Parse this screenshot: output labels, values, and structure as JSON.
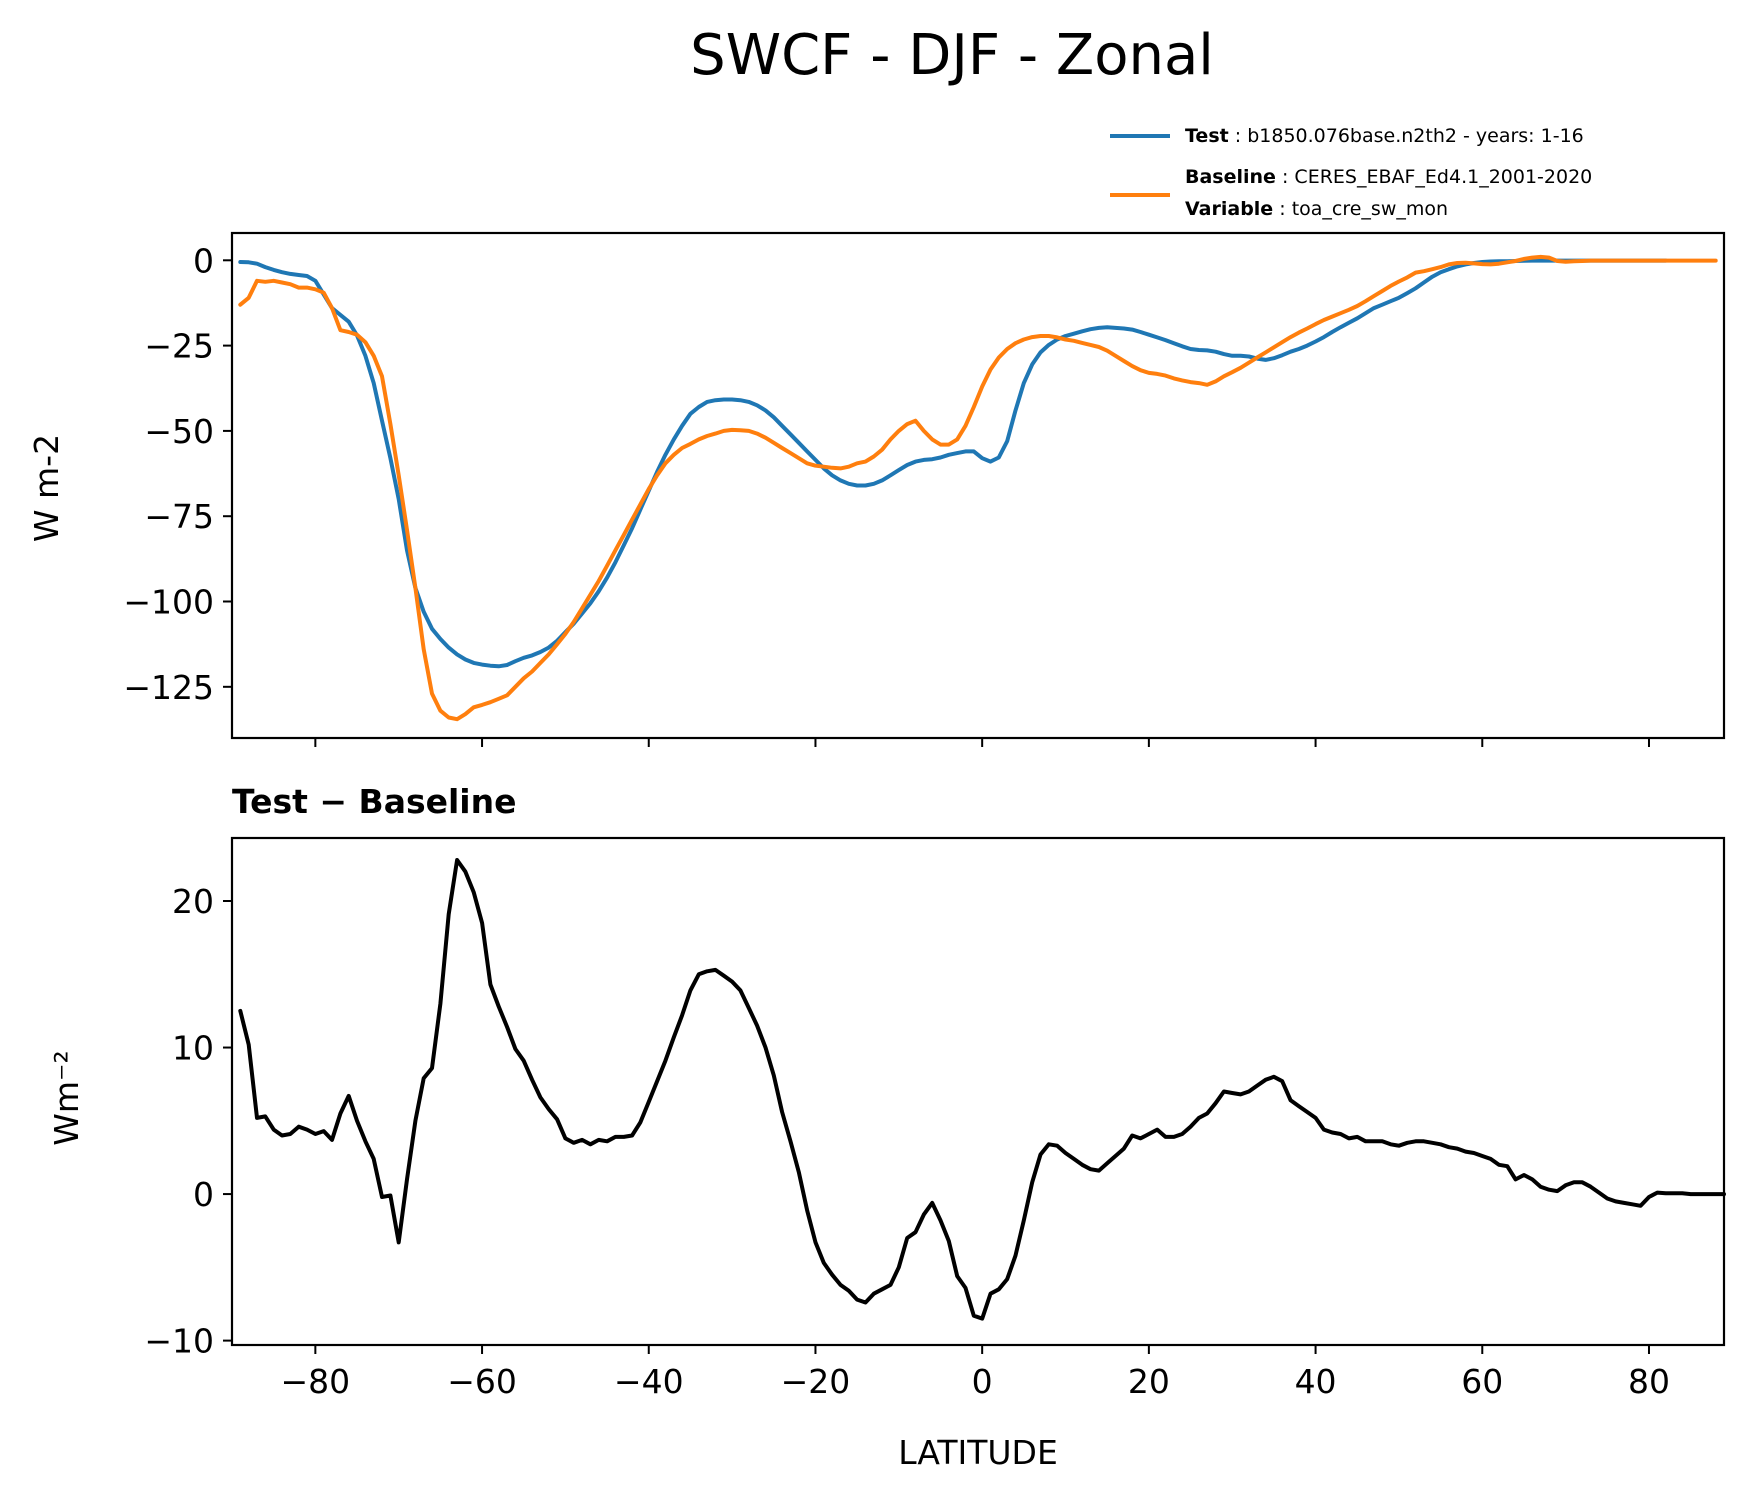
{
  "chart_data": {
    "title": "SWCF - DJF - Zonal",
    "type": "line",
    "x": [
      -89,
      -88,
      -87,
      -86,
      -85,
      -84,
      -83,
      -82,
      -81,
      -80,
      -79,
      -78,
      -77,
      -76,
      -75,
      -74,
      -73,
      -72,
      -71,
      -70,
      -69,
      -68,
      -67,
      -66,
      -65,
      -64,
      -63,
      -62,
      -61,
      -60,
      -59,
      -58,
      -57,
      -56,
      -55,
      -54,
      -53,
      -52,
      -51,
      -50,
      -49,
      -48,
      -47,
      -46,
      -45,
      -44,
      -43,
      -42,
      -41,
      -40,
      -39,
      -38,
      -37,
      -36,
      -35,
      -34,
      -33,
      -32,
      -31,
      -30,
      -29,
      -28,
      -27,
      -26,
      -25,
      -24,
      -23,
      -22,
      -21,
      -20,
      -19,
      -18,
      -17,
      -16,
      -15,
      -14,
      -13,
      -12,
      -11,
      -10,
      -9,
      -8,
      -7,
      -6,
      -5,
      -4,
      -3,
      -2,
      -1,
      0,
      1,
      2,
      3,
      4,
      5,
      6,
      7,
      8,
      9,
      10,
      11,
      12,
      13,
      14,
      15,
      16,
      17,
      18,
      19,
      20,
      21,
      22,
      23,
      24,
      25,
      26,
      27,
      28,
      29,
      30,
      31,
      32,
      33,
      34,
      35,
      36,
      37,
      38,
      39,
      40,
      41,
      42,
      43,
      44,
      45,
      46,
      47,
      48,
      49,
      50,
      51,
      52,
      53,
      54,
      55,
      56,
      57,
      58,
      59,
      60,
      61,
      62,
      63,
      64,
      65,
      66,
      67,
      68,
      69,
      70,
      71,
      72,
      73,
      74,
      75,
      76,
      77,
      78,
      79,
      80,
      81,
      82,
      83,
      84,
      85,
      86,
      87,
      88,
      89
    ],
    "xlim": [
      -90,
      89
    ],
    "xticks": [
      -80,
      -60,
      -40,
      -20,
      0,
      20,
      40,
      60,
      80
    ],
    "xtick_labels": [
      "−80",
      "−60",
      "−40",
      "−20",
      "0",
      "20",
      "40",
      "60",
      "80"
    ],
    "xlabel": "LATITUDE",
    "legend": {
      "location": "above-right",
      "entries": [
        {
          "key": "Test",
          "text": "b1850.076base.n2th2 - years: 1-16",
          "color": "#1f77b4"
        },
        {
          "key": "Baseline",
          "text": "CERES_EBAF_Ed4.1_2001-2020",
          "color": "#ff7f0e"
        },
        {
          "key": "Variable",
          "text": "toa_cre_sw_mon"
        }
      ]
    },
    "panels": [
      {
        "title": "",
        "ylabel": "W m-2",
        "ylim": [
          -140,
          8
        ],
        "yticks": [
          0,
          -25,
          -50,
          -75,
          -100,
          -125
        ],
        "ytick_labels": [
          "0",
          "−25",
          "−50",
          "−75",
          "−100",
          "−125"
        ],
        "series": [
          {
            "name": "Test",
            "color": "#1f77b4",
            "values": [
              -0.5,
              -0.6,
              -1,
              -2,
              -2.8,
              -3.5,
              -4,
              -4.3,
              -4.6,
              -6,
              -10,
              -14,
              -16,
              -18,
              -22,
              -28,
              -36,
              -47,
              -58,
              -70,
              -85,
              -96,
              -103,
              -108,
              -111,
              -113.5,
              -115.5,
              -117,
              -118,
              -118.5,
              -118.8,
              -119,
              -118.6,
              -117.5,
              -116.5,
              -115.8,
              -114.8,
              -113.5,
              -111.5,
              -109,
              -106.5,
              -103.5,
              -100.5,
              -97,
              -93,
              -88.5,
              -83.5,
              -78.5,
              -73,
              -67.5,
              -62,
              -57,
              -52.5,
              -48.5,
              -45,
              -43,
              -41.5,
              -41,
              -40.8,
              -40.8,
              -41,
              -41.5,
              -42.5,
              -44,
              -46,
              -48.5,
              -51,
              -53.5,
              -56,
              -58.5,
              -61,
              -63,
              -64.5,
              -65.5,
              -66,
              -66,
              -65.5,
              -64.5,
              -63,
              -61.5,
              -60,
              -59,
              -58.5,
              -58.3,
              -57.8,
              -57,
              -56.5,
              -56,
              -56,
              -58,
              -59,
              -57.8,
              -53,
              -44,
              -36,
              -30.5,
              -27,
              -24.8,
              -23.2,
              -22.2,
              -21.5,
              -20.8,
              -20.2,
              -19.8,
              -19.6,
              -19.8,
              -20,
              -20.3,
              -21,
              -21.8,
              -22.6,
              -23.4,
              -24.3,
              -25.2,
              -26,
              -26.3,
              -26.4,
              -26.8,
              -27.5,
              -28,
              -28,
              -28.2,
              -28.8,
              -29.2,
              -28.7,
              -27.8,
              -26.8,
              -26,
              -25,
              -23.8,
              -22.5,
              -21,
              -19.6,
              -18.3,
              -17,
              -15.5,
              -14,
              -13,
              -12,
              -11,
              -9.6,
              -8.2,
              -6.5,
              -4.8,
              -3.5,
              -2.6,
              -1.8,
              -1.2,
              -0.8,
              -0.5,
              -0.35,
              -0.3,
              -0.25,
              -0.2,
              -0.15,
              -0.1,
              -0.1,
              -0.1,
              -0.1,
              -0.1,
              -0.1,
              -0.1,
              -0.1,
              -0.1,
              -0.1,
              -0.1,
              -0.1,
              -0.1,
              -0.1,
              -0.1,
              -0.1,
              -0.1
            ]
          },
          {
            "name": "Baseline",
            "color": "#ff7f0e",
            "values": [
              -13,
              -11,
              -6,
              -6.3,
              -6,
              -6.5,
              -7,
              -8,
              -8,
              -8.5,
              -9.5,
              -14,
              -20.5,
              -21,
              -21.8,
              -24,
              -28,
              -34,
              -48,
              -63,
              -79,
              -96,
              -114,
              -127,
              -132,
              -134,
              -134.5,
              -133,
              -131,
              -130.3,
              -129.5,
              -128.5,
              -127.5,
              -125,
              -122.5,
              -120.5,
              -118,
              -115.5,
              -112.5,
              -109.5,
              -106,
              -102,
              -98,
              -94,
              -89.5,
              -85,
              -80.5,
              -76,
              -71.5,
              -67,
              -63,
              -59.5,
              -57,
              -55,
              -53.8,
              -52.5,
              -51.5,
              -50.8,
              -50,
              -49.7,
              -49.8,
              -50,
              -50.8,
              -52,
              -53.5,
              -55,
              -56.5,
              -58,
              -59.5,
              -60.2,
              -60.5,
              -60.8,
              -61,
              -60.5,
              -59.5,
              -59,
              -57.5,
              -55.5,
              -52.5,
              -50,
              -48,
              -47,
              -50,
              -52.5,
              -54,
              -54,
              -52.5,
              -48.5,
              -43,
              -37,
              -32,
              -28.5,
              -26,
              -24.3,
              -23.2,
              -22.5,
              -22.2,
              -22.2,
              -22.6,
              -23.2,
              -23.6,
              -24.2,
              -24.8,
              -25.4,
              -26.5,
              -28,
              -29.5,
              -31,
              -32.2,
              -33,
              -33.3,
              -33.8,
              -34.6,
              -35.2,
              -35.7,
              -36,
              -36.5,
              -35.5,
              -34,
              -32.8,
              -31.5,
              -30,
              -28.5,
              -27,
              -25.5,
              -24,
              -22.5,
              -21.2,
              -20,
              -18.7,
              -17.5,
              -16.5,
              -15.5,
              -14.5,
              -13.4,
              -12,
              -10.5,
              -9,
              -7.5,
              -6.2,
              -5,
              -3.6,
              -3.2,
              -2.6,
              -2,
              -1.2,
              -0.8,
              -0.7,
              -0.9,
              -1.1,
              -1.2,
              -1,
              -0.6,
              -0.2,
              0.4,
              0.8,
              1,
              0.8,
              -0.2,
              -0.4,
              -0.3,
              -0.2,
              -0.1,
              -0.1,
              -0.1,
              -0.1,
              -0.1,
              -0.1,
              -0.1,
              -0.1,
              -0.1,
              -0.1,
              -0.1,
              -0.1,
              -0.1,
              -0.1,
              -0.1,
              -0.1
            ]
          }
        ]
      },
      {
        "title": "Test − Baseline",
        "ylabel": "Wm⁻²",
        "ylim": [
          -10.3,
          24.3
        ],
        "yticks": [
          20,
          10,
          0,
          -10
        ],
        "ytick_labels": [
          "20",
          "10",
          "0",
          "−10"
        ],
        "series": [
          {
            "name": "Test − Baseline",
            "color": "#000000",
            "values": [
              12.5,
              10.2,
              5.2,
              5.3,
              4.4,
              4.0,
              4.1,
              4.6,
              4.4,
              4.1,
              4.3,
              3.7,
              5.5,
              6.7,
              5.0,
              3.6,
              2.4,
              -0.2,
              -0.1,
              -3.3,
              1.0,
              5.0,
              7.9,
              8.6,
              13.0,
              19.1,
              22.8,
              22.0,
              20.6,
              18.5,
              14.3,
              12.8,
              11.4,
              9.9,
              9.1,
              7.8,
              6.6,
              5.8,
              5.1,
              3.8,
              3.5,
              3.7,
              3.4,
              3.7,
              3.6,
              3.9,
              3.9,
              4.0,
              4.9,
              6.3,
              7.7,
              9.1,
              10.7,
              12.2,
              13.9,
              15.0,
              15.2,
              15.3,
              14.9,
              14.5,
              13.9,
              12.7,
              11.5,
              10.0,
              8.1,
              5.6,
              3.6,
              1.5,
              -1.1,
              -3.3,
              -4.7,
              -5.5,
              -6.2,
              -6.6,
              -7.2,
              -7.4,
              -6.8,
              -6.5,
              -6.2,
              -5.0,
              -3.0,
              -2.6,
              -1.4,
              -0.6,
              -1.8,
              -3.2,
              -5.6,
              -6.4,
              -8.3,
              -8.5,
              -6.8,
              -6.5,
              -5.8,
              -4.2,
              -1.8,
              0.8,
              2.7,
              3.4,
              3.3,
              2.8,
              2.4,
              2.0,
              1.7,
              1.6,
              2.1,
              2.6,
              3.1,
              4.0,
              3.8,
              4.1,
              4.4,
              3.9,
              3.9,
              4.1,
              4.6,
              5.2,
              5.5,
              6.2,
              7.0,
              6.9,
              6.8,
              7.0,
              7.4,
              7.8,
              8.0,
              7.7,
              6.4,
              6.0,
              5.6,
              5.2,
              4.4,
              4.2,
              4.1,
              3.8,
              3.9,
              3.6,
              3.6,
              3.6,
              3.4,
              3.3,
              3.5,
              3.6,
              3.6,
              3.5,
              3.4,
              3.2,
              3.1,
              2.9,
              2.8,
              2.6,
              2.4,
              2.0,
              1.9,
              1.0,
              1.3,
              1.0,
              0.5,
              0.3,
              0.2,
              0.6,
              0.8,
              0.8,
              0.5,
              0.1,
              -0.3,
              -0.5,
              -0.6,
              -0.7,
              -0.8,
              -0.2,
              0.1,
              0.05,
              0.05,
              0.05,
              0.0,
              0.0,
              0.0,
              0.0,
              0.0
            ]
          }
        ]
      }
    ]
  }
}
